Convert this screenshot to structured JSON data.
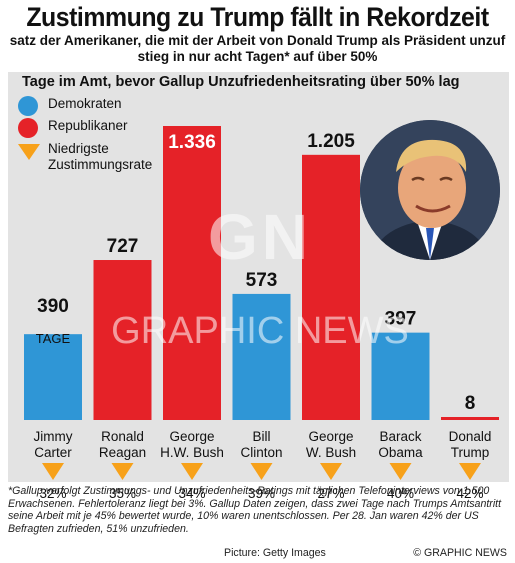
{
  "title": "Zustimmung zu Trump fällt in Rekordzeit",
  "subtitle_line1": "satz der Amerikaner, die mit der Arbeit von Donald Trump als Präsident unzuf",
  "subtitle_line2": "stieg in nur acht Tagen* auf über 50%",
  "legend": {
    "democrats": "Demokraten",
    "republicans": "Republikaner",
    "lowest_line1": "Niedrigste",
    "lowest_line2": "Zustimmungsrate"
  },
  "watermark": {
    "logo": "GN",
    "text": "GRAPHIC NEWS"
  },
  "footnote": "*Gallup verfolgt Zustimmungs- und Unzufriedenheits-Ratings mit täglichen Telefoninterviews von 1.500 Erwachsenen. Fehlertoleranz liegt bei 3%. Gallup Daten zeigen, dass zwei Tage nach Trumps Amtsantritt seine Arbeit mit je 45% bewertet wurde, 10% waren unentschlossen. Per 28. Jan waren 42% der US Befragten zufrieden, 51% unzufrieden.",
  "picture_credit": "Picture: Getty Images",
  "copyright": "© GRAPHIC NEWS",
  "colors": {
    "democrat": "#2f96d6",
    "republican": "#e52228",
    "triangle": "#f7a11a",
    "panel": "#e3e3e3"
  },
  "chart_data": {
    "type": "bar",
    "title": "Tage im Amt, bevor Gallup Unzufriedenheitsrating über 50% lag",
    "categories": [
      {
        "line1": "Jimmy",
        "line2": "Carter"
      },
      {
        "line1": "Ronald",
        "line2": "Reagan"
      },
      {
        "line1": "George",
        "line2": "H.W. Bush"
      },
      {
        "line1": "Bill",
        "line2": "Clinton"
      },
      {
        "line1": "George",
        "line2": "W. Bush"
      },
      {
        "line1": "Barack",
        "line2": "Obama"
      },
      {
        "line1": "Donald",
        "line2": "Trump"
      }
    ],
    "values": [
      390,
      727,
      1336,
      573,
      1205,
      397,
      8
    ],
    "value_labels": [
      "390",
      "727",
      "1.336",
      "573",
      "1.205",
      "397",
      "8"
    ],
    "unit_label": "TAGE",
    "party": [
      "democrat",
      "republican",
      "republican",
      "democrat",
      "republican",
      "democrat",
      "republican"
    ],
    "lowest_approval": [
      "32%",
      "35%",
      "34%",
      "39%",
      "27%",
      "40%",
      "42%"
    ],
    "ylim": [
      0,
      1336
    ]
  }
}
